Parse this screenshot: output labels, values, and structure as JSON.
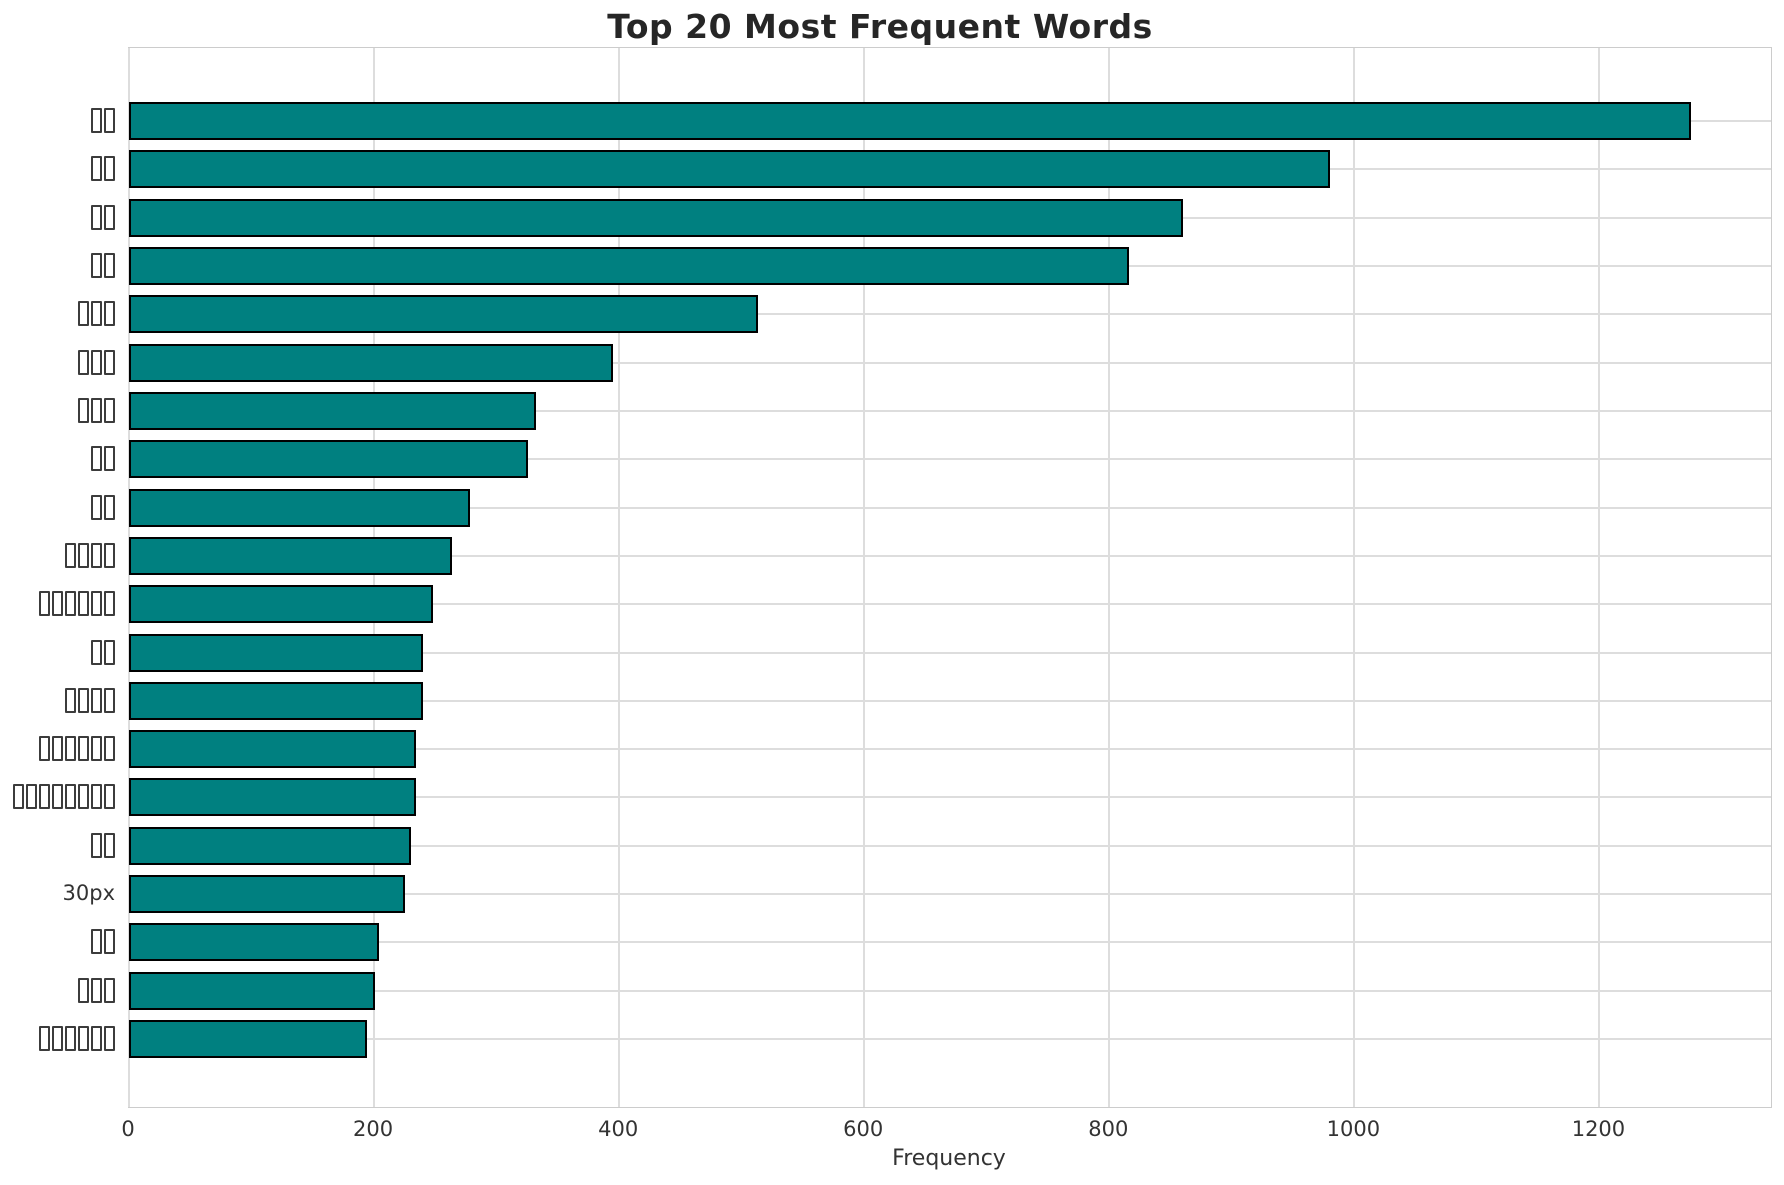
{
  "title": "Top 20 Most Frequent Words",
  "colors": {
    "bar_fill": "#008080",
    "bar_edge": "#000000",
    "grid": "#dddddd",
    "spine": "#cccccc",
    "title_text": "#262626",
    "tick_text": "#333333"
  },
  "chart_data": {
    "type": "bar",
    "orientation": "horizontal",
    "title": "Top 20 Most Frequent Words",
    "xlabel": "Frequency",
    "ylabel": "",
    "grid": true,
    "xlim": [
      0,
      1340
    ],
    "x_ticks": [
      0,
      200,
      400,
      600,
      800,
      1000,
      1200
    ],
    "categories": [
      "□□",
      "□□",
      "□□",
      "□□",
      "□□□",
      "□□□",
      "□□□",
      "□□",
      "□□",
      "□□□□",
      "□□□□□□",
      "□□",
      "□□□□",
      "□□□□□□",
      "□□□□□□□□",
      "□□",
      "30px",
      "□□",
      "□□□",
      "□□□□□□"
    ],
    "tofu_counts": [
      2,
      2,
      2,
      2,
      3,
      3,
      3,
      2,
      2,
      4,
      6,
      2,
      4,
      6,
      8,
      2,
      0,
      2,
      3,
      6
    ],
    "values": [
      1275,
      980,
      860,
      816,
      513,
      395,
      332,
      326,
      278,
      264,
      248,
      240,
      240,
      234,
      234,
      230,
      225,
      204,
      201,
      194
    ]
  }
}
